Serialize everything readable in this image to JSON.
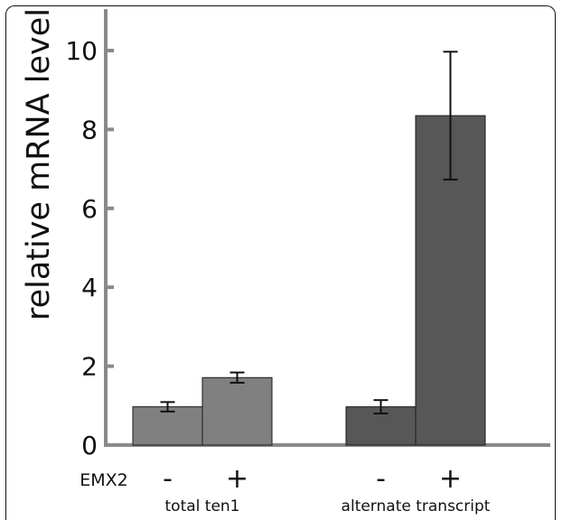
{
  "chart_data": {
    "type": "bar",
    "ylabel": "relative mRNA level",
    "ylim": [
      0,
      10.5
    ],
    "yticks": [
      0,
      2,
      4,
      6,
      8,
      10
    ],
    "row_label": "EMX2",
    "groups": [
      {
        "name": "total ten1",
        "bars": [
          {
            "condition": "-",
            "value": 0.97,
            "error": 0.12,
            "color": "#808080"
          },
          {
            "condition": "+",
            "value": 1.71,
            "error": 0.13,
            "color": "#808080"
          }
        ]
      },
      {
        "name": "alternate transcript",
        "bars": [
          {
            "condition": "-",
            "value": 0.97,
            "error": 0.17,
            "color": "#575757"
          },
          {
            "condition": "+",
            "value": 8.35,
            "error": 1.62,
            "color": "#575757"
          }
        ]
      }
    ],
    "grid": false,
    "legend": "none"
  }
}
